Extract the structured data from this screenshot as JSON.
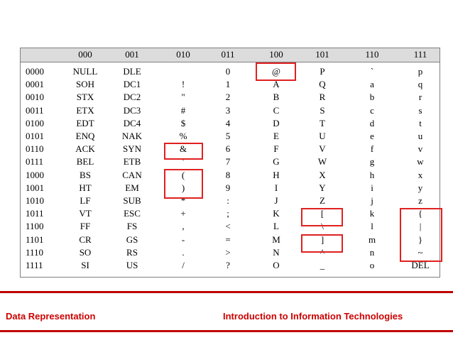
{
  "table": {
    "corner": "",
    "columns": [
      "000",
      "001",
      "010",
      "011",
      "100",
      "101",
      "110",
      "111"
    ],
    "rows": [
      {
        "bits": "0000",
        "cells": [
          "NULL",
          "DLE",
          "",
          "0",
          "@",
          "P",
          "`",
          "p"
        ]
      },
      {
        "bits": "0001",
        "cells": [
          "SOH",
          "DC1",
          "!",
          "1",
          "A",
          "Q",
          "a",
          "q"
        ]
      },
      {
        "bits": "0010",
        "cells": [
          "STX",
          "DC2",
          "\"",
          "2",
          "B",
          "R",
          "b",
          "r"
        ]
      },
      {
        "bits": "0011",
        "cells": [
          "ETX",
          "DC3",
          "#",
          "3",
          "C",
          "S",
          "c",
          "s"
        ]
      },
      {
        "bits": "0100",
        "cells": [
          "EDT",
          "DC4",
          "$",
          "4",
          "D",
          "T",
          "d",
          "t"
        ]
      },
      {
        "bits": "0101",
        "cells": [
          "ENQ",
          "NAK",
          "%",
          "5",
          "E",
          "U",
          "e",
          "u"
        ]
      },
      {
        "bits": "0110",
        "cells": [
          "ACK",
          "SYN",
          "&",
          "6",
          "F",
          "V",
          "f",
          "v"
        ]
      },
      {
        "bits": "0111",
        "cells": [
          "BEL",
          "ETB",
          "'",
          "7",
          "G",
          "W",
          "g",
          "w"
        ]
      },
      {
        "bits": "1000",
        "cells": [
          "BS",
          "CAN",
          "(",
          "8",
          "H",
          "X",
          "h",
          "x"
        ]
      },
      {
        "bits": "1001",
        "cells": [
          "HT",
          "EM",
          ")",
          "9",
          "I",
          "Y",
          "i",
          "y"
        ]
      },
      {
        "bits": "1010",
        "cells": [
          "LF",
          "SUB",
          "*",
          ":",
          "J",
          "Z",
          "j",
          "z"
        ]
      },
      {
        "bits": "1011",
        "cells": [
          "VT",
          "ESC",
          "+",
          ";",
          "K",
          "[",
          "k",
          "{"
        ]
      },
      {
        "bits": "1100",
        "cells": [
          "FF",
          "FS",
          ",",
          "<",
          "L",
          "\\",
          "l",
          "|"
        ]
      },
      {
        "bits": "1101",
        "cells": [
          "CR",
          "GS",
          "-",
          "=",
          "M",
          "]",
          "m",
          "}"
        ]
      },
      {
        "bits": "1110",
        "cells": [
          "SO",
          "RS",
          ".",
          ">",
          "N",
          "^",
          "n",
          "~"
        ]
      },
      {
        "bits": "1111",
        "cells": [
          "SI",
          "US",
          "/",
          "?",
          "O",
          "_",
          "o",
          "DEL"
        ]
      }
    ],
    "highlight_color": "#e02020"
  },
  "footer": {
    "left": "Data Representation",
    "right": "Introduction to Information Technologies",
    "color": "#cc0000"
  }
}
